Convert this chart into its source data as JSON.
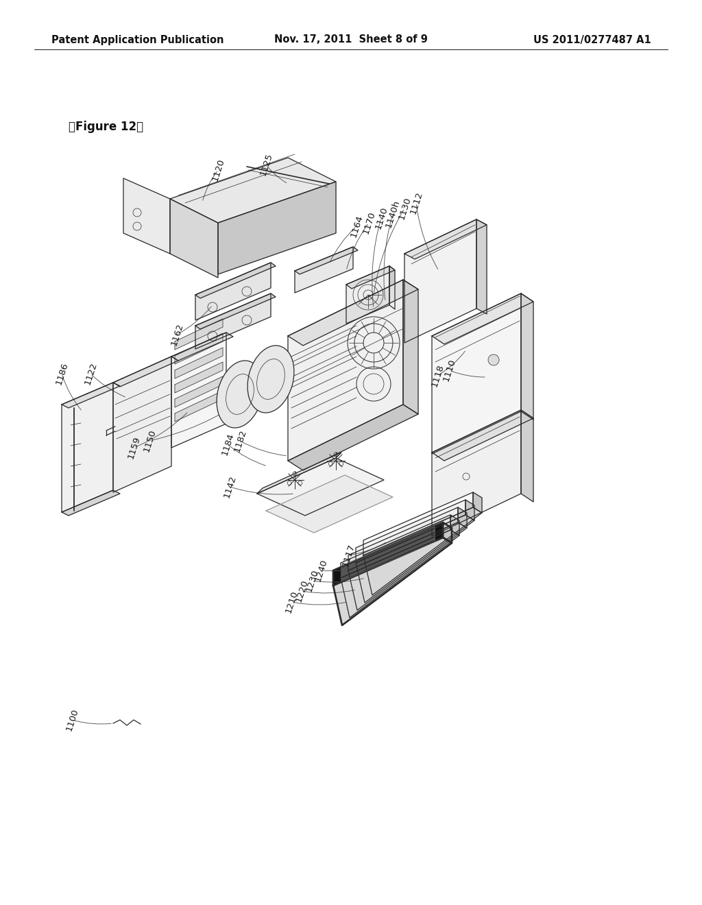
{
  "background_color": "#ffffff",
  "header_left": "Patent Application Publication",
  "header_center": "Nov. 17, 2011  Sheet 8 of 9",
  "header_right": "US 2011/0277487 A1",
  "figure_label": "「Figure 12」",
  "header_fontsize": 10.5,
  "figure_label_fontsize": 12,
  "label_fontsize": 9.5,
  "line_color": "#2a2a2a",
  "line_width": 0.9,
  "thin_line": 0.5
}
